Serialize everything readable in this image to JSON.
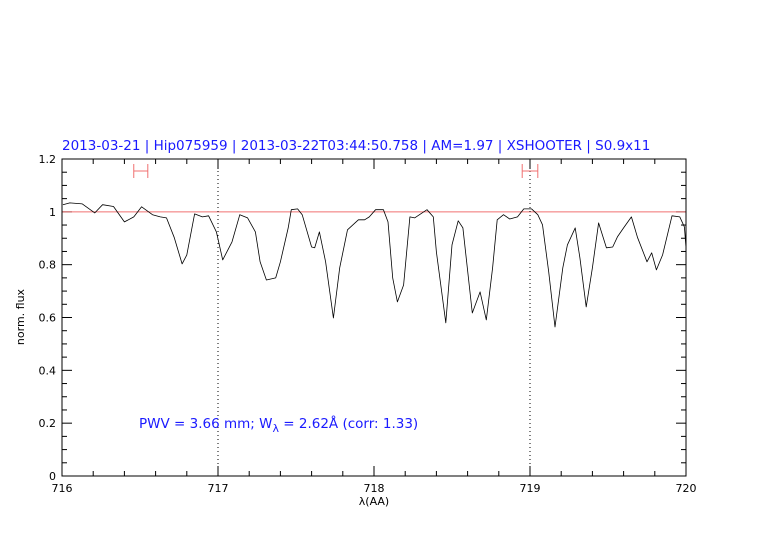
{
  "chart_data": {
    "type": "line",
    "title": "2013-03-21 | Hip075959 | 2013-03-22T03:44:50.758 | AM=1.97 | XSHOOTER | S0.9x11",
    "xlabel": "λ(AA)",
    "ylabel": "norm. flux",
    "xlim": [
      716,
      720
    ],
    "ylim": [
      0,
      1.2
    ],
    "x_ticks": [
      "716",
      "717",
      "718",
      "719",
      "720"
    ],
    "y_ticks": [
      "0",
      "0.2",
      "0.4",
      "0.6",
      "0.8",
      "1",
      "1.2"
    ],
    "grid": false,
    "reference_line": 1.0,
    "vertical_markers": [
      717,
      719
    ],
    "ranges": [
      [
        716.46,
        716.55
      ],
      [
        718.95,
        719.05
      ]
    ],
    "annotation": {
      "prefix": "PWV = 3.66 mm; W",
      "sub": "λ",
      "suffix": " = 2.62Å (corr: 1.33)"
    },
    "colors": {
      "spectrum": "#000000",
      "title": "#1a1aff",
      "reference": "#f07070",
      "ranges": "#f07070"
    },
    "series": [
      {
        "x": [
          716.006,
          716.05,
          716.13,
          716.21,
          716.26,
          716.33,
          716.4,
          716.46,
          716.51,
          716.58,
          716.63,
          716.67,
          716.72,
          716.77,
          716.8,
          716.85,
          716.9,
          716.94,
          716.99,
          717.03,
          717.09,
          717.14,
          717.19,
          717.24,
          717.27,
          717.31,
          717.37,
          717.4,
          717.45,
          717.47,
          717.51,
          717.54,
          717.6,
          717.62,
          717.65,
          717.69,
          717.74,
          717.78,
          717.83,
          717.9,
          717.94,
          717.97,
          718.01,
          718.06,
          718.09,
          718.12,
          718.15,
          718.19,
          718.23,
          718.26,
          718.34,
          718.38,
          718.4,
          718.46,
          718.5,
          718.54,
          718.57,
          718.63,
          718.68,
          718.72,
          718.76,
          718.79,
          718.83,
          718.87,
          718.92,
          718.96,
          719.01,
          719.05,
          719.08,
          719.12,
          719.16,
          719.21,
          719.24,
          719.29,
          719.32,
          719.36,
          719.4,
          719.44,
          719.49,
          719.53,
          719.56,
          719.6,
          719.65,
          719.69,
          719.75,
          719.78,
          719.81,
          719.85,
          719.91,
          719.96,
          719.99,
          720.0
        ],
        "y": [
          1.027,
          1.034,
          1.03,
          0.996,
          1.027,
          1.02,
          0.962,
          0.981,
          1.019,
          0.989,
          0.981,
          0.977,
          0.902,
          0.803,
          0.837,
          0.992,
          0.981,
          0.985,
          0.924,
          0.818,
          0.886,
          0.989,
          0.977,
          0.924,
          0.811,
          0.742,
          0.75,
          0.811,
          0.939,
          1.008,
          1.011,
          0.989,
          0.867,
          0.864,
          0.924,
          0.811,
          0.598,
          0.788,
          0.932,
          0.97,
          0.97,
          0.981,
          1.008,
          1.008,
          0.962,
          0.75,
          0.659,
          0.723,
          0.981,
          0.977,
          1.008,
          0.981,
          0.848,
          0.58,
          0.875,
          0.966,
          0.939,
          0.617,
          0.697,
          0.591,
          0.788,
          0.97,
          0.989,
          0.973,
          0.981,
          1.011,
          1.011,
          0.989,
          0.951,
          0.773,
          0.564,
          0.788,
          0.875,
          0.939,
          0.826,
          0.64,
          0.788,
          0.958,
          0.864,
          0.867,
          0.905,
          0.939,
          0.981,
          0.902,
          0.811,
          0.845,
          0.78,
          0.837,
          0.985,
          0.981,
          0.943,
          0.864
        ]
      }
    ]
  }
}
